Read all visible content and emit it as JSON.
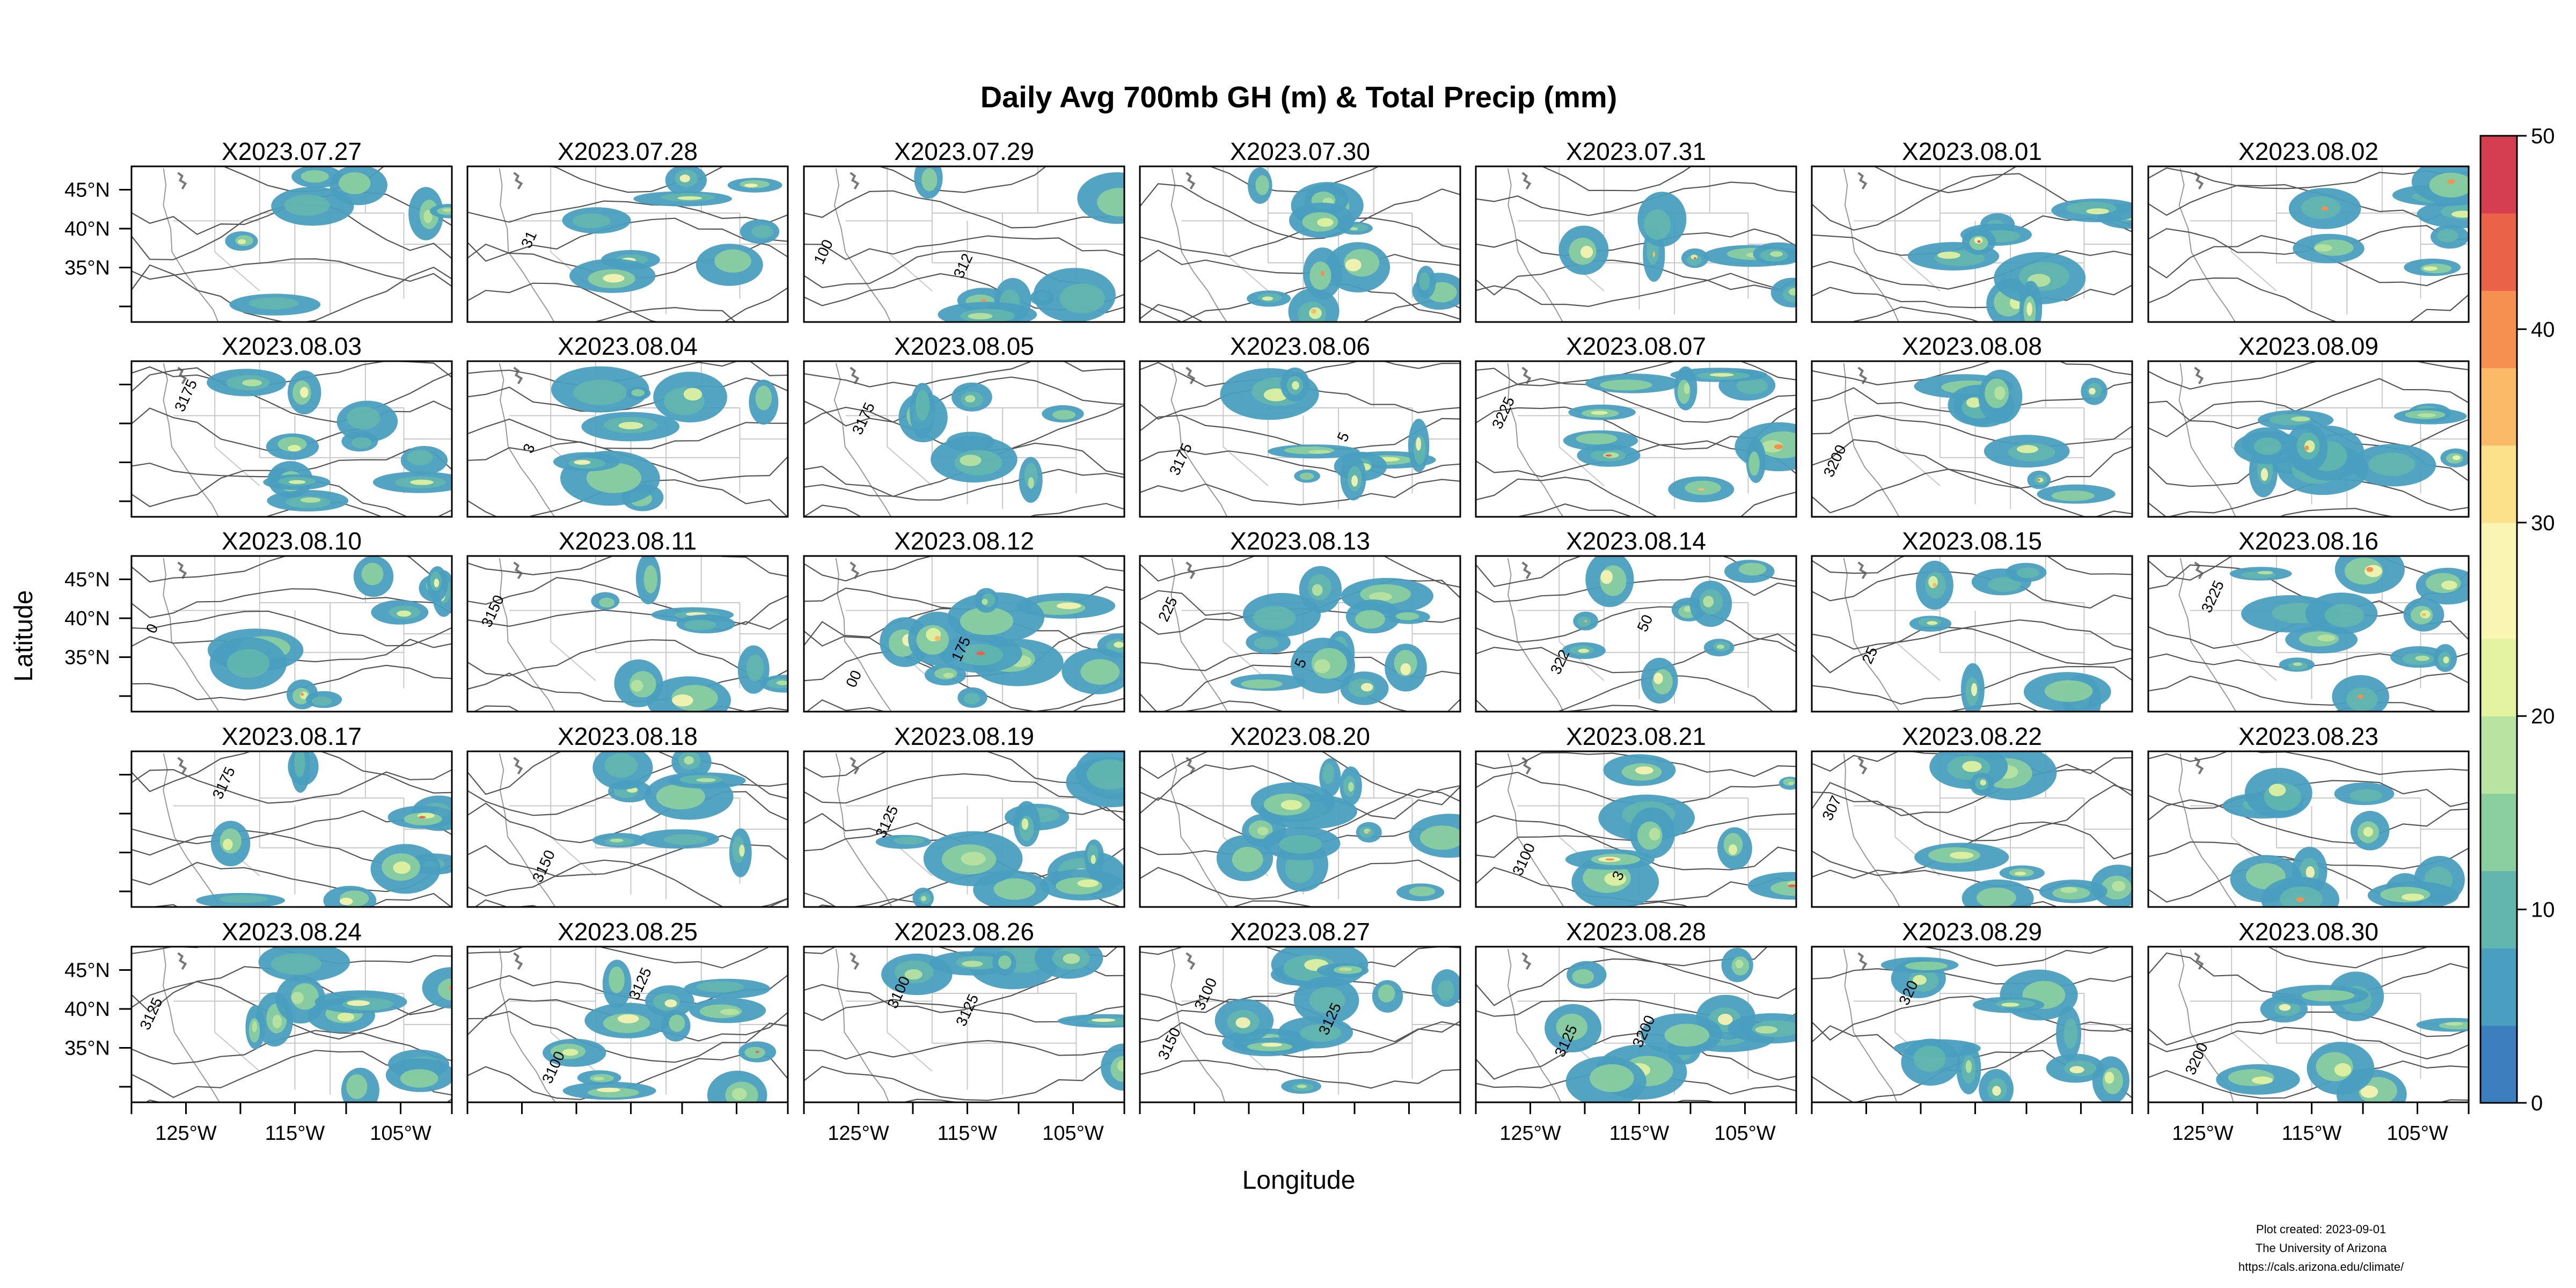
{
  "chart_data": {
    "type": "heatmap",
    "title": "Daily Avg 700mb GH (m) & Total Precip (mm)",
    "xlabel": "Longitude",
    "ylabel": "Latitude",
    "x_ticks": [
      "125°W",
      "115°W",
      "105°W"
    ],
    "y_ticks": [
      "45°N",
      "40°N",
      "35°N"
    ],
    "colorbar": {
      "min": 0,
      "max": 50,
      "ticks": [
        "0",
        "10",
        "20",
        "30",
        "40",
        "50"
      ],
      "colors": [
        "#3b7fbf",
        "#4a9fc0",
        "#63b6ad",
        "#8ccf9f",
        "#b9e3a0",
        "#e4f3a1",
        "#fbf5b3",
        "#fde08a",
        "#fbba68",
        "#f6904e",
        "#ea6248",
        "#d53e4f"
      ]
    },
    "panels": [
      {
        "date": "X2023.07.27",
        "labels": []
      },
      {
        "date": "X2023.07.28",
        "labels": [
          "31"
        ]
      },
      {
        "date": "X2023.07.29",
        "labels": [
          "100",
          "312"
        ]
      },
      {
        "date": "X2023.07.30",
        "labels": []
      },
      {
        "date": "X2023.07.31",
        "labels": []
      },
      {
        "date": "X2023.08.01",
        "labels": []
      },
      {
        "date": "X2023.08.02",
        "labels": []
      },
      {
        "date": "X2023.08.03",
        "labels": [
          "3175"
        ]
      },
      {
        "date": "X2023.08.04",
        "labels": [
          "3"
        ]
      },
      {
        "date": "X2023.08.05",
        "labels": [
          "3175"
        ]
      },
      {
        "date": "X2023.08.06",
        "labels": [
          "3175",
          "5"
        ]
      },
      {
        "date": "X2023.08.07",
        "labels": [
          "3225"
        ]
      },
      {
        "date": "X2023.08.08",
        "labels": [
          "3200"
        ]
      },
      {
        "date": "X2023.08.09",
        "labels": []
      },
      {
        "date": "X2023.08.10",
        "labels": [
          "0"
        ]
      },
      {
        "date": "X2023.08.11",
        "labels": [
          "3150"
        ]
      },
      {
        "date": "X2023.08.12",
        "labels": [
          "00",
          "175"
        ]
      },
      {
        "date": "X2023.08.13",
        "labels": [
          "225",
          "5"
        ]
      },
      {
        "date": "X2023.08.14",
        "labels": [
          "322",
          "50"
        ]
      },
      {
        "date": "X2023.08.15",
        "labels": [
          "25"
        ]
      },
      {
        "date": "X2023.08.16",
        "labels": [
          "3225"
        ]
      },
      {
        "date": "X2023.08.17",
        "labels": [
          "3175"
        ]
      },
      {
        "date": "X2023.08.18",
        "labels": [
          "3150"
        ]
      },
      {
        "date": "X2023.08.19",
        "labels": [
          "3125"
        ]
      },
      {
        "date": "X2023.08.20",
        "labels": []
      },
      {
        "date": "X2023.08.21",
        "labels": [
          "3100",
          "3"
        ]
      },
      {
        "date": "X2023.08.22",
        "labels": [
          "307"
        ]
      },
      {
        "date": "X2023.08.23",
        "labels": []
      },
      {
        "date": "X2023.08.24",
        "labels": [
          "3125"
        ]
      },
      {
        "date": "X2023.08.25",
        "labels": [
          "3100",
          "3125"
        ]
      },
      {
        "date": "X2023.08.26",
        "labels": [
          "3100",
          "3125"
        ]
      },
      {
        "date": "X2023.08.27",
        "labels": [
          "3100",
          "3125",
          "3150"
        ]
      },
      {
        "date": "X2023.08.28",
        "labels": [
          "3125",
          "3200"
        ]
      },
      {
        "date": "X2023.08.29",
        "labels": [
          "320"
        ]
      },
      {
        "date": "X2023.08.30",
        "labels": [
          "3200"
        ]
      }
    ]
  },
  "footer": {
    "line1": "Plot created: 2023-09-01",
    "line2": "The University of Arizona",
    "line3": "https://cals.arizona.edu/climate/"
  }
}
